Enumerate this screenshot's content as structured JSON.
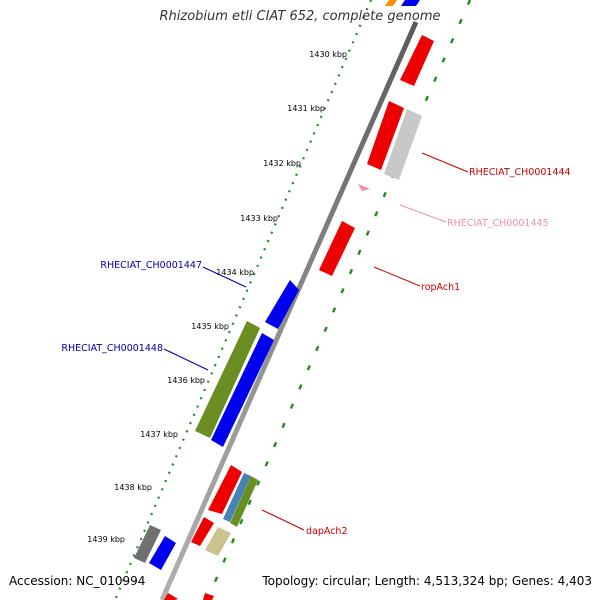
{
  "title": "Rhizobium etli CIAT 652, complete genome",
  "footer": {
    "accession": "Accession: NC_010994",
    "summary": "Topology: circular; Length: 4,513,324 bp; Genes: 4,403"
  },
  "ticks": [
    "1430 kbp",
    "1431 kbp",
    "1432 kbp",
    "1433 kbp",
    "1434 kbp",
    "1435 kbp",
    "1436 kbp",
    "1437 kbp",
    "1438 kbp",
    "1439 kbp"
  ],
  "gene_labels": [
    {
      "id": "lbl-1444",
      "text": "RHECIAT_CH0001444",
      "color": "#cc0000"
    },
    {
      "id": "lbl-1445",
      "text": "RHECIAT_CH0001445",
      "color": "#f08cb4"
    },
    {
      "id": "lbl-ropAch1",
      "text": "ropAch1",
      "color": "#cc0000"
    },
    {
      "id": "lbl-1447",
      "text": "RHECIAT_CH0001447",
      "color": "#0000aa"
    },
    {
      "id": "lbl-1448",
      "text": "RHECIAT_CH0001448",
      "color": "#0000aa"
    },
    {
      "id": "lbl-dapAch2",
      "text": "dapAch2",
      "color": "#cc0000"
    }
  ],
  "colors": {
    "backbone": "#8c8c8c",
    "dotted_track": "#1e8c1e",
    "red_gene": "#ee0000",
    "blue_gene": "#0000ee",
    "olive_gene": "#6b8e23",
    "grey_gene": "#c8c8c8",
    "dark_grey_gene": "#707070",
    "steel_blue_gene": "#4682b4",
    "khaki_gene": "#c8c48c",
    "pink_gene": "#f08cb4",
    "orange_gene": "#ff8c00"
  }
}
